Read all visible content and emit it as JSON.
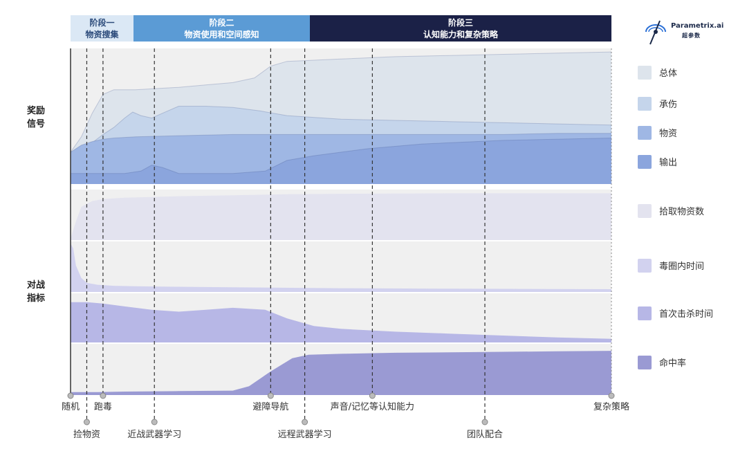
{
  "brand": {
    "name": "Parametrix.ai",
    "cn": "超参数"
  },
  "chart_data": {
    "type": "area",
    "stages": [
      {
        "line1": "阶段一",
        "line2": "物资搜集",
        "color": "#dbe8f5",
        "text_color": "#2b4a7a",
        "from": "随机",
        "to": "跑毒"
      },
      {
        "line1": "阶段二",
        "line2": "物资使用和空间感知",
        "color": "#5b9bd5",
        "text_color": "#ffffff",
        "from": "跑毒",
        "to": "远程武器学习"
      },
      {
        "line1": "阶段三",
        "line2": "认知能力和复杂策略",
        "color": "#1b2147",
        "text_color": "#ffffff",
        "from": "远程武器学习",
        "to": "复杂策略"
      }
    ],
    "milestones": [
      {
        "label": "随机",
        "t": 0,
        "row": "top"
      },
      {
        "label": "捡物资",
        "t": 0.03,
        "row": "bottom"
      },
      {
        "label": "跑毒",
        "t": 0.06,
        "row": "top"
      },
      {
        "label": "近战武器学习",
        "t": 0.155,
        "row": "bottom"
      },
      {
        "label": "避障导航",
        "t": 0.37,
        "row": "top"
      },
      {
        "label": "远程武器学习",
        "t": 0.433,
        "row": "bottom"
      },
      {
        "label": "声音/记忆等认知能力",
        "t": 0.558,
        "row": "top"
      },
      {
        "label": "团队配合",
        "t": 0.766,
        "row": "bottom"
      },
      {
        "label": "复杂策略",
        "t": 1.0,
        "row": "top"
      }
    ],
    "groups": [
      {
        "label_lines": [
          "奖励",
          "信号"
        ],
        "type": "stacked_area",
        "series": [
          {
            "name": "总体",
            "color": "#dde4ec",
            "x": [
              0,
              0.02,
              0.04,
              0.06,
              0.08,
              0.12,
              0.2,
              0.25,
              0.3,
              0.34,
              0.37,
              0.4,
              0.5,
              0.6,
              0.7,
              0.8,
              0.9,
              1.0
            ],
            "y": [
              0.27,
              0.4,
              0.6,
              0.76,
              0.8,
              0.8,
              0.82,
              0.84,
              0.86,
              0.9,
              1.0,
              1.04,
              1.06,
              1.08,
              1.09,
              1.1,
              1.11,
              1.12
            ]
          },
          {
            "name": "承伤",
            "color": "#c5d5eb",
            "x": [
              0,
              0.02,
              0.04,
              0.06,
              0.08,
              0.1,
              0.115,
              0.13,
              0.15,
              0.17,
              0.2,
              0.25,
              0.3,
              0.35,
              0.4,
              0.5,
              0.6,
              0.7,
              0.8,
              0.9,
              1.0
            ],
            "y": [
              0.27,
              0.3,
              0.35,
              0.42,
              0.48,
              0.56,
              0.61,
              0.58,
              0.56,
              0.6,
              0.66,
              0.66,
              0.65,
              0.62,
              0.58,
              0.55,
              0.54,
              0.53,
              0.52,
              0.51,
              0.5
            ]
          },
          {
            "name": "物资",
            "color": "#9fb7e4",
            "x": [
              0,
              0.02,
              0.04,
              0.06,
              0.08,
              0.12,
              0.2,
              0.3,
              0.4,
              0.5,
              0.6,
              0.7,
              0.8,
              0.9,
              1.0
            ],
            "y": [
              0.27,
              0.33,
              0.36,
              0.38,
              0.39,
              0.4,
              0.41,
              0.42,
              0.42,
              0.42,
              0.42,
              0.42,
              0.42,
              0.43,
              0.43
            ]
          },
          {
            "name": "输出",
            "color": "#8ba5dd",
            "x": [
              0,
              0.05,
              0.1,
              0.13,
              0.15,
              0.17,
              0.2,
              0.3,
              0.36,
              0.4,
              0.45,
              0.55,
              0.65,
              0.8,
              1.0
            ],
            "y": [
              0.09,
              0.09,
              0.09,
              0.11,
              0.16,
              0.14,
              0.09,
              0.09,
              0.11,
              0.2,
              0.24,
              0.3,
              0.34,
              0.37,
              0.39
            ]
          }
        ]
      },
      {
        "label_lines": [
          "对战",
          "指标"
        ],
        "type": "small_multiples",
        "series": [
          {
            "name": "拾取物资数",
            "color": "#e3e3ef",
            "x": [
              0,
              0.01,
              0.02,
              0.04,
              0.06,
              0.1,
              0.2,
              0.3,
              0.4,
              0.5,
              0.7,
              1.0
            ],
            "y": [
              0.05,
              0.4,
              0.7,
              0.82,
              0.86,
              0.89,
              0.92,
              0.94,
              0.96,
              0.97,
              0.98,
              0.98
            ]
          },
          {
            "name": "毒圈内时间",
            "color": "#d2d2ef",
            "x": [
              0,
              0.005,
              0.01,
              0.02,
              0.03,
              0.05,
              0.08,
              0.12,
              0.2,
              0.3,
              0.5,
              0.7,
              1.0
            ],
            "y": [
              1.0,
              0.9,
              0.55,
              0.3,
              0.2,
              0.16,
              0.14,
              0.13,
              0.12,
              0.11,
              0.09,
              0.08,
              0.07
            ]
          },
          {
            "name": "首次击杀时间",
            "color": "#b7b7e6",
            "x": [
              0,
              0.03,
              0.06,
              0.1,
              0.15,
              0.2,
              0.25,
              0.3,
              0.36,
              0.4,
              0.45,
              0.5,
              0.6,
              0.7,
              0.8,
              0.9,
              1.0
            ],
            "y": [
              0.86,
              0.86,
              0.83,
              0.77,
              0.7,
              0.66,
              0.7,
              0.74,
              0.7,
              0.52,
              0.36,
              0.3,
              0.24,
              0.2,
              0.16,
              0.12,
              0.09
            ]
          },
          {
            "name": "命中率",
            "color": "#9a9ad3",
            "x": [
              0,
              0.05,
              0.1,
              0.2,
              0.3,
              0.33,
              0.37,
              0.41,
              0.44,
              0.5,
              0.6,
              0.7,
              0.8,
              0.9,
              1.0
            ],
            "y": [
              0.06,
              0.06,
              0.07,
              0.08,
              0.09,
              0.18,
              0.48,
              0.75,
              0.82,
              0.84,
              0.86,
              0.87,
              0.88,
              0.89,
              0.9
            ]
          }
        ]
      }
    ]
  }
}
